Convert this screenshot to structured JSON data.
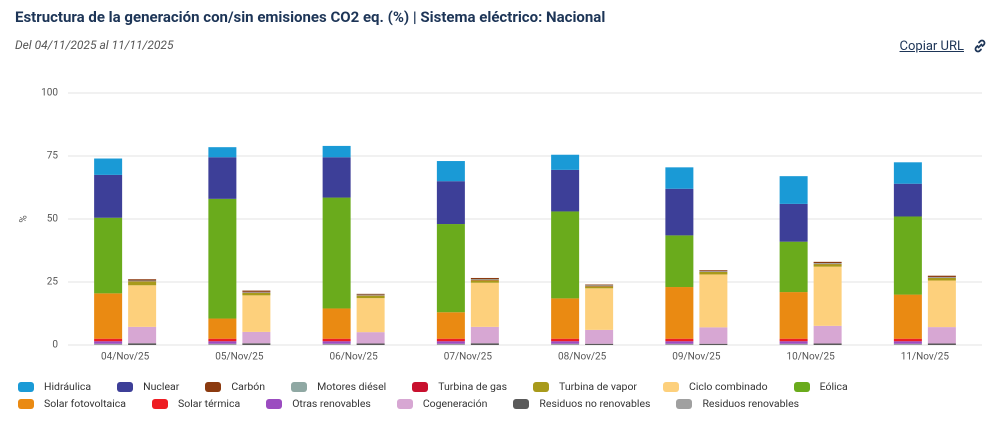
{
  "title": "Estructura de la generación con/sin emisiones CO2 eq. (%) | Sistema eléctrico: Nacional",
  "subtitle": "Del 04/11/2025 al 11/11/2025",
  "copy_link": "Copiar URL",
  "chart_data": {
    "type": "bar",
    "stacked": true,
    "y_label": "%",
    "categories": [
      "04/Nov/25",
      "05/Nov/25",
      "06/Nov/25",
      "07/Nov/25",
      "08/Nov/25",
      "09/Nov/25",
      "10/Nov/25",
      "11/Nov/25"
    ],
    "ylim": [
      0,
      100
    ],
    "yticks": [
      0,
      25,
      50,
      75,
      100
    ],
    "grid": true,
    "series": [
      {
        "name": "Hidráulica",
        "color": "#1a9ad6",
        "stack": 0,
        "values": [
          6.5,
          4,
          4.5,
          8,
          6,
          8.5,
          11,
          8.5
        ]
      },
      {
        "name": "Nuclear",
        "color": "#3d3f98",
        "stack": 0,
        "values": [
          17,
          16.5,
          16,
          17,
          16.5,
          18.5,
          15,
          13
        ]
      },
      {
        "name": "Carbón",
        "color": "#8b3a0f",
        "stack": 1,
        "values": [
          0.5,
          0.5,
          0.3,
          0.5,
          0.3,
          0.3,
          0.5,
          0.5
        ]
      },
      {
        "name": "Motores diésel",
        "color": "#8fa8a3",
        "stack": 1,
        "values": [
          0.3,
          0.3,
          0.3,
          0.3,
          0.3,
          0.3,
          0.3,
          0.3
        ]
      },
      {
        "name": "Turbina de gas",
        "color": "#c8102e",
        "stack": 1,
        "values": [
          0.1,
          0.1,
          0.1,
          0.1,
          0.1,
          0.1,
          0.1,
          0.1
        ]
      },
      {
        "name": "Turbina de vapor",
        "color": "#a89a1b",
        "stack": 1,
        "values": [
          1.5,
          1,
          1,
          1,
          0.8,
          1,
          1,
          1
        ]
      },
      {
        "name": "Ciclo combinado",
        "color": "#fdd07c",
        "stack": 1,
        "values": [
          16.5,
          14.5,
          13.5,
          17.5,
          16.5,
          21,
          23.5,
          18.5
        ]
      },
      {
        "name": "Eólica",
        "color": "#6aab1c",
        "stack": 0,
        "values": [
          30,
          47.5,
          44,
          35,
          34.5,
          20.5,
          20,
          31
        ]
      },
      {
        "name": "Solar fotovoltaica",
        "color": "#ea8a12",
        "stack": 0,
        "values": [
          18,
          8,
          12,
          10.5,
          16,
          20.5,
          18.5,
          17.5
        ]
      },
      {
        "name": "Solar térmica",
        "color": "#ee1d23",
        "stack": 0,
        "values": [
          1,
          1,
          1,
          1,
          1,
          1,
          1,
          1
        ]
      },
      {
        "name": "Otras renovables",
        "color": "#9b4cc0",
        "stack": 0,
        "values": [
          1,
          1,
          1,
          1,
          1,
          1,
          1,
          1
        ]
      },
      {
        "name": "Cogeneración",
        "color": "#d7a7d3",
        "stack": 1,
        "values": [
          6.5,
          4.5,
          4.5,
          6.5,
          5.5,
          6.5,
          7,
          6.5
        ]
      },
      {
        "name": "Residuos no renovables",
        "color": "#5a5a5a",
        "stack": 1,
        "values": [
          0.7,
          0.7,
          0.6,
          0.7,
          0.5,
          0.5,
          0.6,
          0.6
        ]
      },
      {
        "name": "Residuos renovables",
        "color": "#a0a0a0",
        "stack": 0,
        "values": [
          0.5,
          0.5,
          0.5,
          0.5,
          0.5,
          0.5,
          0.5,
          0.5
        ]
      }
    ]
  }
}
